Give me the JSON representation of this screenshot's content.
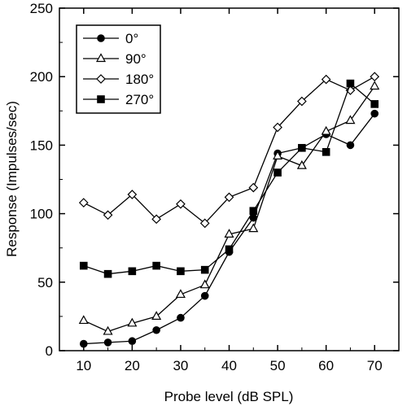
{
  "chart_data": {
    "type": "line",
    "title": "",
    "xlabel": "Probe level (dB SPL)",
    "ylabel": "Response (Impulses/sec)",
    "xlim": [
      5,
      75
    ],
    "ylim": [
      0,
      250
    ],
    "xticks": [
      10,
      20,
      30,
      40,
      50,
      60,
      70
    ],
    "yticks": [
      0,
      50,
      100,
      150,
      200,
      250
    ],
    "grid": false,
    "legend_position": "top-left",
    "x": [
      10,
      15,
      20,
      25,
      30,
      35,
      40,
      45,
      50,
      55,
      60,
      65,
      70
    ],
    "series": [
      {
        "name": "0°",
        "marker": "circle-filled",
        "color": "#000000",
        "values": [
          5,
          6,
          7,
          15,
          24,
          40,
          72,
          97,
          144,
          148,
          158,
          150,
          173
        ]
      },
      {
        "name": "90°",
        "marker": "triangle-open",
        "color": "#000000",
        "values": [
          22,
          14,
          20,
          25,
          41,
          48,
          85,
          89,
          142,
          135,
          160,
          168,
          193
        ]
      },
      {
        "name": "180°",
        "marker": "diamond-open",
        "color": "#000000",
        "values": [
          108,
          99,
          114,
          96,
          107,
          93,
          112,
          119,
          163,
          182,
          198,
          190,
          200
        ]
      },
      {
        "name": "270°",
        "marker": "square-filled",
        "color": "#000000",
        "values": [
          62,
          56,
          58,
          62,
          58,
          59,
          74,
          102,
          130,
          148,
          145,
          195,
          180
        ]
      }
    ]
  }
}
